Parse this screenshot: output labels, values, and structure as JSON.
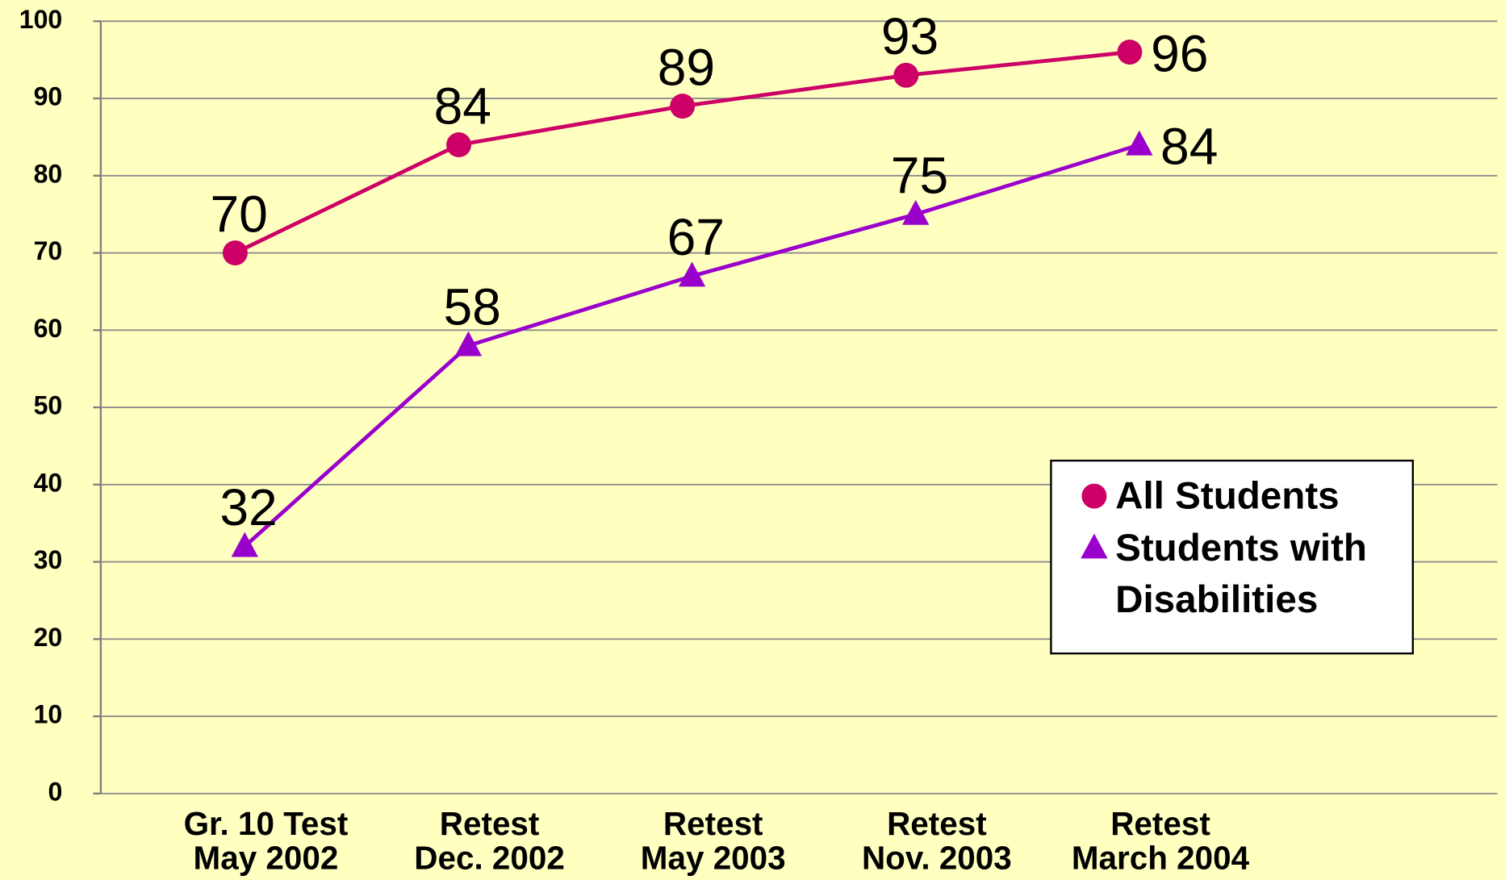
{
  "chart_data": {
    "type": "line",
    "categories": [
      [
        "Gr. 10 Test",
        "May 2002"
      ],
      [
        "Retest",
        "Dec. 2002"
      ],
      [
        "Retest",
        "May 2003"
      ],
      [
        "Retest",
        "Nov. 2003"
      ],
      [
        "Retest",
        "March 2004"
      ]
    ],
    "series": [
      {
        "name": "All Students",
        "color": "#cc0066",
        "marker": "circle",
        "values": [
          70,
          84,
          89,
          93,
          96
        ]
      },
      {
        "name": "Students with Disabilities",
        "color": "#9900cc",
        "marker": "triangle",
        "values": [
          32,
          58,
          67,
          75,
          84
        ]
      }
    ],
    "ylim": [
      0,
      100
    ],
    "yticks": [
      0,
      10,
      20,
      30,
      40,
      50,
      60,
      70,
      80,
      90,
      100
    ],
    "grid": true,
    "legend": "right"
  }
}
